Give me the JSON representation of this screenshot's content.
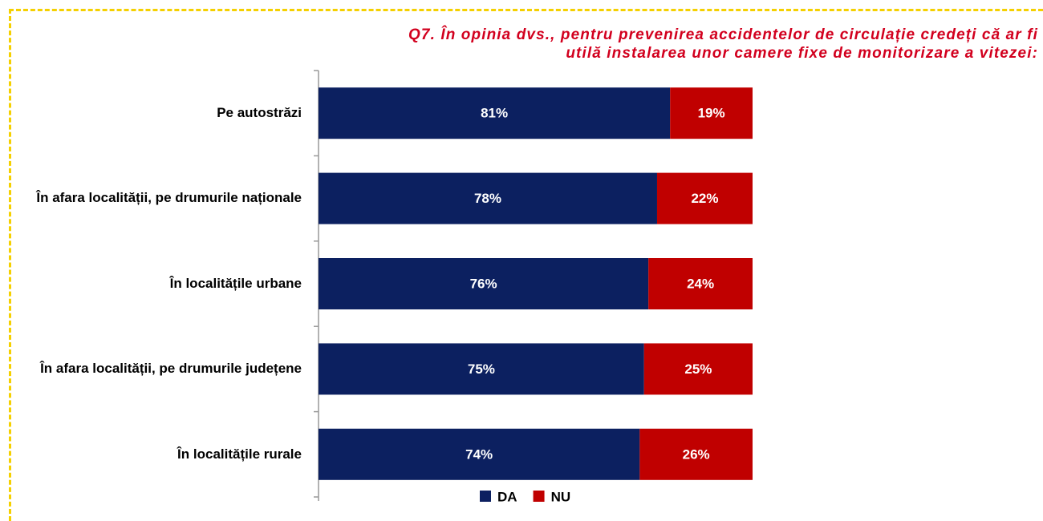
{
  "chart_data": {
    "type": "stacked_barh",
    "title": "Q7. În opinia dvs., pentru prevenirea accidentelor de circulație credeți că ar fi utilă instalarea unor camere fixe de monitorizare a vitezei:",
    "categories": [
      "Pe autostrăzi",
      "În afara localității, pe drumurile naționale",
      "În localitățile urbane",
      "În afara localității, pe drumurile județene",
      "În localitățile rurale"
    ],
    "series": [
      {
        "name": "DA",
        "color": "#0c2060",
        "values": [
          81,
          78,
          76,
          75,
          74
        ],
        "value_labels": [
          "81%",
          "78%",
          "76%",
          "75%",
          "74%"
        ]
      },
      {
        "name": "NU",
        "color": "#c00000",
        "values": [
          19,
          22,
          24,
          25,
          26
        ],
        "value_labels": [
          "19%",
          "22%",
          "24%",
          "25%",
          "26%"
        ]
      }
    ],
    "xlim": [
      0,
      100
    ]
  }
}
